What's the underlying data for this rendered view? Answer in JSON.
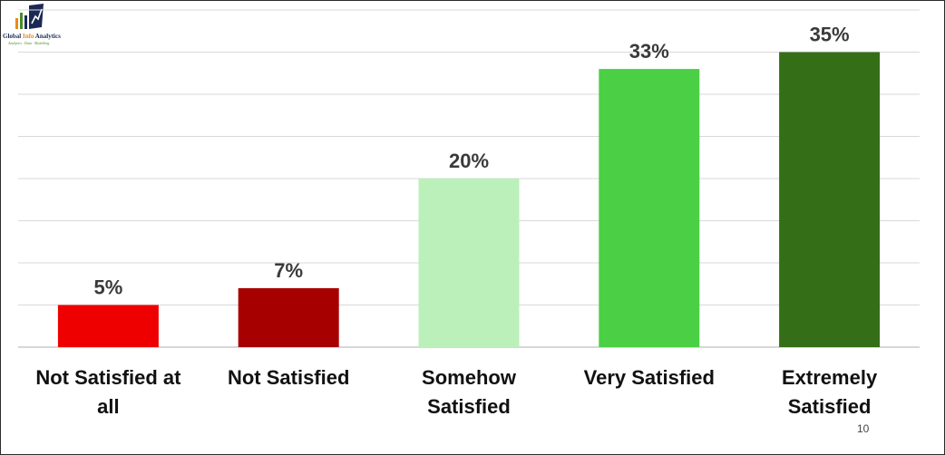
{
  "logo": {
    "title_prefix": "Global ",
    "title_accent": "Info",
    "title_suffix": " Analytics",
    "tagline": "Analytics · Data · Modelling"
  },
  "page": {
    "number": "10"
  },
  "colors": {
    "grid": "#d9d9d9",
    "axis": "#bfbfbf",
    "bars": [
      "#ee0000",
      "#a70000",
      "#bbf0bb",
      "#4bcf45",
      "#346f17"
    ]
  },
  "chart_data": {
    "type": "bar",
    "categories": [
      [
        "Not Satisfied at",
        "all"
      ],
      [
        "Not Satisfied"
      ],
      [
        "Somehow",
        "Satisfied"
      ],
      [
        "Very Satisfied"
      ],
      [
        "Extremely",
        "Satisfied"
      ]
    ],
    "values": [
      5,
      7,
      20,
      33,
      35
    ],
    "value_labels": [
      "5%",
      "7%",
      "20%",
      "33%",
      "35%"
    ],
    "unit": "%",
    "ylim": [
      0,
      40
    ],
    "grid": true,
    "legend": "none"
  }
}
